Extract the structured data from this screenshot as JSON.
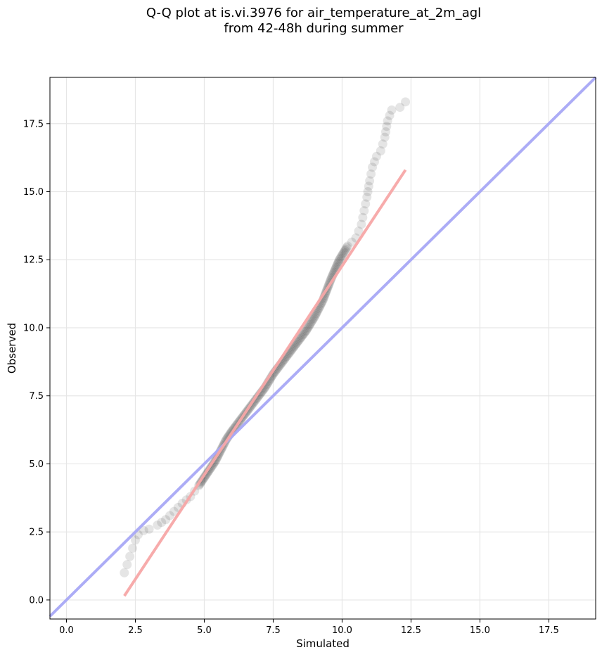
{
  "chart_data": {
    "type": "scatter",
    "title_line1": "Q-Q plot at is.vi.3976 for air_temperature_at_2m_agl",
    "title_line2": "from 42-48h during summer",
    "xlabel": "Simulated",
    "ylabel": "Observed",
    "xlim": [
      -0.6,
      19.2
    ],
    "ylim": [
      -0.7,
      19.2
    ],
    "xticks": [
      0.0,
      2.5,
      5.0,
      7.5,
      10.0,
      12.5,
      15.0,
      17.5
    ],
    "yticks": [
      0.0,
      2.5,
      5.0,
      7.5,
      10.0,
      12.5,
      15.0,
      17.5
    ],
    "xtick_labels": [
      "0.0",
      "2.5",
      "5.0",
      "7.5",
      "10.0",
      "12.5",
      "15.0",
      "17.5"
    ],
    "ytick_labels": [
      "0.0",
      "2.5",
      "5.0",
      "7.5",
      "10.0",
      "12.5",
      "15.0",
      "17.5"
    ],
    "grid": true,
    "quantile_curve": [
      [
        2.1,
        1.0
      ],
      [
        2.2,
        1.3
      ],
      [
        2.3,
        1.6
      ],
      [
        2.4,
        1.9
      ],
      [
        2.5,
        2.2
      ],
      [
        2.6,
        2.4
      ],
      [
        2.8,
        2.55
      ],
      [
        3.0,
        2.6
      ],
      [
        3.3,
        2.75
      ],
      [
        3.6,
        2.95
      ],
      [
        3.9,
        3.25
      ],
      [
        4.2,
        3.55
      ],
      [
        4.5,
        3.8
      ],
      [
        4.8,
        4.2
      ],
      [
        5.0,
        4.5
      ],
      [
        5.2,
        4.8
      ],
      [
        5.4,
        5.1
      ],
      [
        5.6,
        5.5
      ],
      [
        5.8,
        5.9
      ],
      [
        6.0,
        6.2
      ],
      [
        6.3,
        6.6
      ],
      [
        6.6,
        7.0
      ],
      [
        6.9,
        7.4
      ],
      [
        7.2,
        7.8
      ],
      [
        7.5,
        8.3
      ],
      [
        7.8,
        8.7
      ],
      [
        8.1,
        9.1
      ],
      [
        8.4,
        9.5
      ],
      [
        8.7,
        9.9
      ],
      [
        9.0,
        10.4
      ],
      [
        9.3,
        11.0
      ],
      [
        9.6,
        11.8
      ],
      [
        9.9,
        12.5
      ],
      [
        10.2,
        13.0
      ],
      [
        10.5,
        13.3
      ],
      [
        10.7,
        13.8
      ],
      [
        10.8,
        14.3
      ],
      [
        10.9,
        14.8
      ],
      [
        11.0,
        15.4
      ],
      [
        11.1,
        15.9
      ],
      [
        11.25,
        16.3
      ],
      [
        11.4,
        16.5
      ],
      [
        11.55,
        17.0
      ],
      [
        11.65,
        17.6
      ],
      [
        11.8,
        18.0
      ],
      [
        12.1,
        18.1
      ],
      [
        12.3,
        18.3
      ]
    ],
    "series": [
      {
        "kind": "identity-line",
        "color": "#a8a8f5",
        "points": [
          [
            -0.6,
            -0.6
          ],
          [
            19.2,
            19.2
          ]
        ]
      },
      {
        "kind": "fit-line",
        "color": "#f7a6a6",
        "points": [
          [
            2.1,
            0.15
          ],
          [
            12.3,
            15.8
          ]
        ]
      }
    ],
    "point_color": "#000000"
  }
}
